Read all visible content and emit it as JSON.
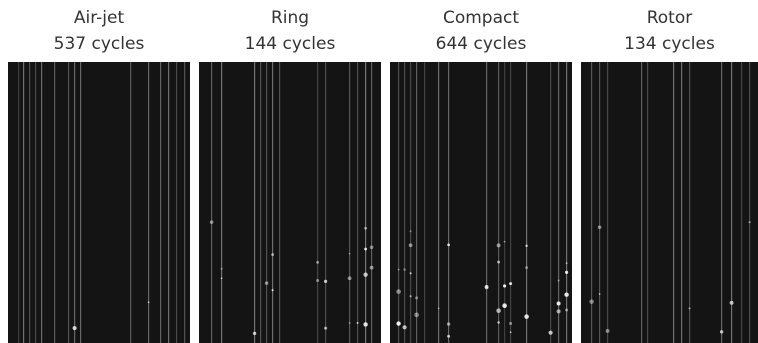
{
  "panels": [
    {
      "title": "Air-jet",
      "caption": "537 cycles"
    },
    {
      "title": "Ring",
      "caption": "144 cycles"
    },
    {
      "title": "Compact",
      "caption": "644 cycles"
    },
    {
      "title": "Rotor",
      "caption": "134 cycles"
    }
  ]
}
